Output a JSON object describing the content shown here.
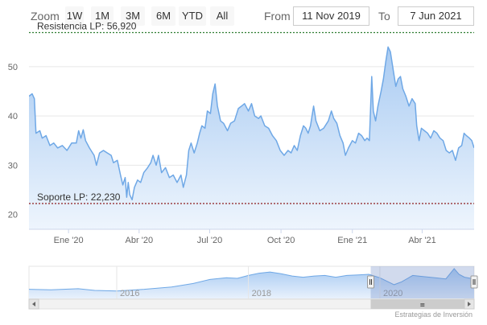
{
  "toolbar": {
    "zoom_label": "Zoom",
    "zoom_buttons": [
      "1W",
      "1M",
      "3M",
      "6M",
      "YTD",
      "All"
    ],
    "from_label": "From",
    "from_value": "11 Nov 2019",
    "to_label": "To",
    "to_value": "7 Jun 2021"
  },
  "credits": "Estrategias de Inversión",
  "colors": {
    "line": "#6fa8e6",
    "area_top": "#a9cbf2",
    "area_bottom": "#eef5fd",
    "resistance": "#2e7d32",
    "support": "#8e1c1c",
    "navigator_mask": "rgba(102,133,194,0.3)"
  },
  "chart_data": {
    "type": "area",
    "x_start": "2019-11-11",
    "x_end": "2021-06-07",
    "ylim": [
      17,
      57
    ],
    "yticks": [
      20,
      30,
      40,
      50
    ],
    "xticks": [
      {
        "date": "2020-01-01",
        "label": "Ene '20"
      },
      {
        "date": "2020-04-01",
        "label": "Abr '20"
      },
      {
        "date": "2020-07-01",
        "label": "Jul '20"
      },
      {
        "date": "2020-10-01",
        "label": "Oct '20"
      },
      {
        "date": "2021-01-01",
        "label": "Ene '21"
      },
      {
        "date": "2021-04-01",
        "label": "Abr '21"
      }
    ],
    "series": [
      {
        "values": [
          [
            "2019-11-11",
            44.0
          ],
          [
            "2019-11-15",
            44.5
          ],
          [
            "2019-11-18",
            43.5
          ],
          [
            "2019-11-20",
            36.5
          ],
          [
            "2019-11-25",
            37.0
          ],
          [
            "2019-11-28",
            35.5
          ],
          [
            "2019-12-03",
            36.0
          ],
          [
            "2019-12-08",
            34.0
          ],
          [
            "2019-12-13",
            34.5
          ],
          [
            "2019-12-18",
            33.5
          ],
          [
            "2019-12-24",
            34.0
          ],
          [
            "2019-12-30",
            33.0
          ],
          [
            "2020-01-05",
            34.5
          ],
          [
            "2020-01-11",
            34.5
          ],
          [
            "2020-01-14",
            37.0
          ],
          [
            "2020-01-17",
            35.5
          ],
          [
            "2020-01-20",
            37.2
          ],
          [
            "2020-01-23",
            35.0
          ],
          [
            "2020-01-28",
            33.5
          ],
          [
            "2020-02-03",
            32.0
          ],
          [
            "2020-02-06",
            30.0
          ],
          [
            "2020-02-10",
            32.5
          ],
          [
            "2020-02-15",
            33.0
          ],
          [
            "2020-02-20",
            32.5
          ],
          [
            "2020-02-25",
            32.0
          ],
          [
            "2020-02-28",
            30.5
          ],
          [
            "2020-03-04",
            31.0
          ],
          [
            "2020-03-08",
            28.0
          ],
          [
            "2020-03-11",
            26.0
          ],
          [
            "2020-03-14",
            27.5
          ],
          [
            "2020-03-16",
            23.5
          ],
          [
            "2020-03-18",
            26.5
          ],
          [
            "2020-03-20",
            24.0
          ],
          [
            "2020-03-23",
            23.0
          ],
          [
            "2020-03-26",
            25.5
          ],
          [
            "2020-03-30",
            27.0
          ],
          [
            "2020-04-03",
            26.5
          ],
          [
            "2020-04-07",
            28.5
          ],
          [
            "2020-04-12",
            29.5
          ],
          [
            "2020-04-16",
            30.5
          ],
          [
            "2020-04-19",
            32.0
          ],
          [
            "2020-04-23",
            30.0
          ],
          [
            "2020-04-26",
            32.0
          ],
          [
            "2020-04-30",
            28.5
          ],
          [
            "2020-05-05",
            29.5
          ],
          [
            "2020-05-10",
            27.5
          ],
          [
            "2020-05-15",
            28.0
          ],
          [
            "2020-05-20",
            26.5
          ],
          [
            "2020-05-25",
            28.0
          ],
          [
            "2020-05-28",
            25.5
          ],
          [
            "2020-06-01",
            28.0
          ],
          [
            "2020-06-04",
            33.0
          ],
          [
            "2020-06-07",
            34.5
          ],
          [
            "2020-06-11",
            32.5
          ],
          [
            "2020-06-15",
            34.5
          ],
          [
            "2020-06-18",
            36.5
          ],
          [
            "2020-06-21",
            38.0
          ],
          [
            "2020-06-25",
            37.5
          ],
          [
            "2020-06-28",
            41.0
          ],
          [
            "2020-07-02",
            40.5
          ],
          [
            "2020-07-05",
            44.5
          ],
          [
            "2020-07-08",
            46.5
          ],
          [
            "2020-07-11",
            42.0
          ],
          [
            "2020-07-15",
            39.0
          ],
          [
            "2020-07-19",
            38.5
          ],
          [
            "2020-07-24",
            37.0
          ],
          [
            "2020-07-28",
            38.5
          ],
          [
            "2020-08-02",
            39.0
          ],
          [
            "2020-08-07",
            41.5
          ],
          [
            "2020-08-11",
            42.0
          ],
          [
            "2020-08-15",
            42.5
          ],
          [
            "2020-08-20",
            41.0
          ],
          [
            "2020-08-24",
            42.5
          ],
          [
            "2020-08-28",
            40.0
          ],
          [
            "2020-09-02",
            39.5
          ],
          [
            "2020-09-05",
            40.0
          ],
          [
            "2020-09-10",
            38.0
          ],
          [
            "2020-09-15",
            37.5
          ],
          [
            "2020-09-20",
            36.0
          ],
          [
            "2020-09-25",
            35.0
          ],
          [
            "2020-09-30",
            33.0
          ],
          [
            "2020-10-05",
            32.0
          ],
          [
            "2020-10-10",
            33.0
          ],
          [
            "2020-10-14",
            32.5
          ],
          [
            "2020-10-18",
            34.0
          ],
          [
            "2020-10-22",
            33.0
          ],
          [
            "2020-10-26",
            36.0
          ],
          [
            "2020-10-30",
            38.0
          ],
          [
            "2020-11-02",
            37.5
          ],
          [
            "2020-11-05",
            36.5
          ],
          [
            "2020-11-08",
            38.0
          ],
          [
            "2020-11-12",
            42.0
          ],
          [
            "2020-11-15",
            39.0
          ],
          [
            "2020-11-20",
            37.0
          ],
          [
            "2020-11-25",
            37.5
          ],
          [
            "2020-12-01",
            39.0
          ],
          [
            "2020-12-05",
            41.0
          ],
          [
            "2020-12-08",
            39.5
          ],
          [
            "2020-12-12",
            38.5
          ],
          [
            "2020-12-16",
            36.0
          ],
          [
            "2020-12-20",
            34.5
          ],
          [
            "2020-12-23",
            32.0
          ],
          [
            "2020-12-27",
            33.5
          ],
          [
            "2021-01-01",
            35.0
          ],
          [
            "2021-01-05",
            34.5
          ],
          [
            "2021-01-09",
            36.5
          ],
          [
            "2021-01-13",
            36.0
          ],
          [
            "2021-01-17",
            35.0
          ],
          [
            "2021-01-20",
            35.5
          ],
          [
            "2021-01-23",
            35.0
          ],
          [
            "2021-01-26",
            48.0
          ],
          [
            "2021-01-28",
            41.0
          ],
          [
            "2021-01-31",
            39.0
          ],
          [
            "2021-02-03",
            42.0
          ],
          [
            "2021-02-07",
            45.0
          ],
          [
            "2021-02-10",
            47.5
          ],
          [
            "2021-02-13",
            51.0
          ],
          [
            "2021-02-16",
            54.0
          ],
          [
            "2021-02-19",
            53.0
          ],
          [
            "2021-02-23",
            49.0
          ],
          [
            "2021-02-26",
            46.0
          ],
          [
            "2021-03-01",
            47.5
          ],
          [
            "2021-03-04",
            48.0
          ],
          [
            "2021-03-07",
            45.5
          ],
          [
            "2021-03-11",
            44.0
          ],
          [
            "2021-03-15",
            42.0
          ],
          [
            "2021-03-19",
            43.5
          ],
          [
            "2021-03-23",
            42.5
          ],
          [
            "2021-03-25",
            38.0
          ],
          [
            "2021-03-28",
            35.0
          ],
          [
            "2021-03-31",
            37.5
          ],
          [
            "2021-04-04",
            37.0
          ],
          [
            "2021-04-08",
            36.5
          ],
          [
            "2021-04-12",
            35.5
          ],
          [
            "2021-04-16",
            37.0
          ],
          [
            "2021-04-20",
            36.5
          ],
          [
            "2021-04-24",
            35.5
          ],
          [
            "2021-04-28",
            35.0
          ],
          [
            "2021-05-02",
            33.0
          ],
          [
            "2021-05-06",
            32.5
          ],
          [
            "2021-05-10",
            33.0
          ],
          [
            "2021-05-14",
            31.0
          ],
          [
            "2021-05-18",
            33.5
          ],
          [
            "2021-05-22",
            34.0
          ],
          [
            "2021-05-25",
            36.5
          ],
          [
            "2021-05-28",
            36.0
          ],
          [
            "2021-06-01",
            35.5
          ],
          [
            "2021-06-04",
            35.0
          ],
          [
            "2021-06-07",
            33.5
          ]
        ]
      }
    ],
    "annotations": [
      {
        "label": "Resistencia LP: 56,920",
        "value": 56.92,
        "role": "resistance"
      },
      {
        "label": "Soporte LP: 22,230",
        "value": 22.23,
        "role": "support"
      }
    ],
    "grid": true,
    "navigator": {
      "x_start": "2014-09-01",
      "x_end": "2021-06-07",
      "selected_from": "2019-11-11",
      "selected_to": "2021-06-07",
      "year_labels": [
        {
          "date": "2016-01-01",
          "label": "2016"
        },
        {
          "date": "2018-01-01",
          "label": "2018"
        },
        {
          "date": "2020-01-01",
          "label": "2020"
        }
      ],
      "values": [
        [
          "2014-09-01",
          16
        ],
        [
          "2015-01-01",
          15
        ],
        [
          "2015-06-01",
          17
        ],
        [
          "2015-09-01",
          14
        ],
        [
          "2016-01-01",
          13
        ],
        [
          "2016-06-01",
          16
        ],
        [
          "2016-11-01",
          20
        ],
        [
          "2017-03-01",
          26
        ],
        [
          "2017-06-01",
          33
        ],
        [
          "2017-09-01",
          36
        ],
        [
          "2017-11-01",
          35
        ],
        [
          "2018-01-01",
          40
        ],
        [
          "2018-03-01",
          44
        ],
        [
          "2018-05-01",
          46
        ],
        [
          "2018-07-01",
          43
        ],
        [
          "2018-09-01",
          39
        ],
        [
          "2018-11-01",
          37
        ],
        [
          "2019-01-01",
          39
        ],
        [
          "2019-03-01",
          40
        ],
        [
          "2019-05-01",
          37
        ],
        [
          "2019-07-01",
          40
        ],
        [
          "2019-09-01",
          41
        ],
        [
          "2019-11-01",
          42
        ],
        [
          "2020-01-01",
          36
        ],
        [
          "2020-03-20",
          24
        ],
        [
          "2020-05-01",
          29
        ],
        [
          "2020-07-01",
          40
        ],
        [
          "2020-09-01",
          38
        ],
        [
          "2020-11-01",
          36
        ],
        [
          "2021-01-01",
          34
        ],
        [
          "2021-02-16",
          52
        ],
        [
          "2021-03-15",
          42
        ],
        [
          "2021-04-15",
          37
        ],
        [
          "2021-06-07",
          34
        ]
      ]
    }
  }
}
